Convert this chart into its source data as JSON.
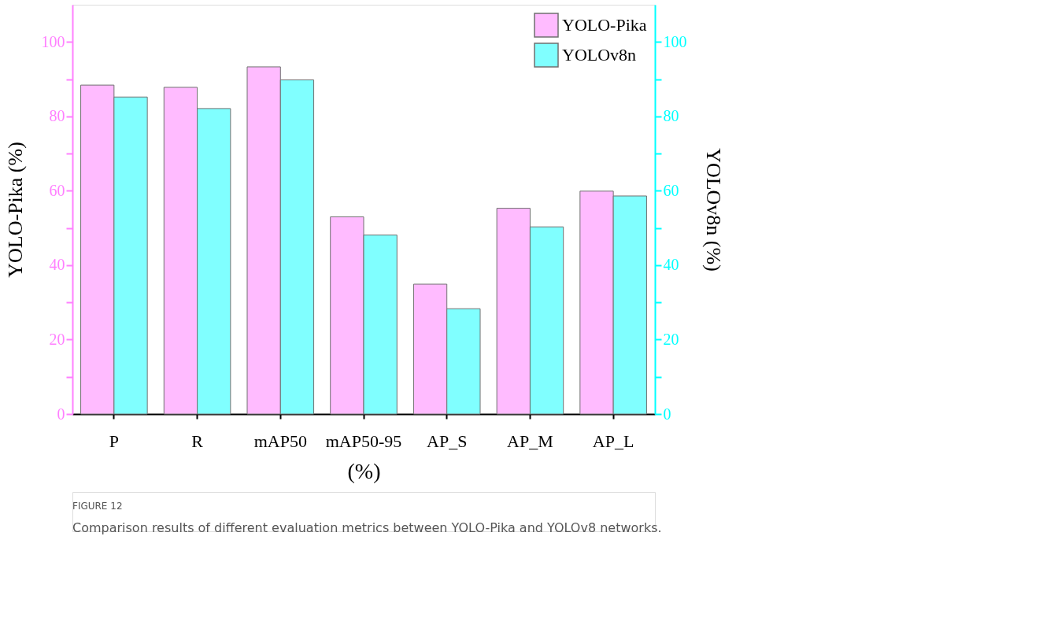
{
  "chart_data": {
    "type": "bar",
    "categories": [
      "P",
      "R",
      "mAP50",
      "mAP50-95",
      "AP_S",
      "AP_M",
      "AP_L"
    ],
    "xlabel": "(%)",
    "ylabel": "YOLO-Pika (%)",
    "y2label": "YOLOv8n (%)",
    "series": [
      {
        "name": "YOLO-Pika",
        "color": "#ffbbff",
        "values": [
          88.4,
          87.8,
          93.3,
          53.0,
          34.9,
          55.3,
          59.9
        ]
      },
      {
        "name": "YOLOv8n",
        "color": "#80ffff",
        "axis": "y2",
        "values": [
          85.2,
          82.1,
          89.8,
          48.1,
          28.3,
          50.3,
          58.6
        ]
      }
    ],
    "ylim": [
      0,
      110
    ],
    "yticks": [
      0,
      {
        "value": 10,
        "label": null
      },
      20,
      {
        "value": 30,
        "label": null
      },
      40,
      {
        "value": 50,
        "label": null
      },
      60,
      {
        "value": 70,
        "label": null
      },
      80,
      {
        "value": 90,
        "label": null
      },
      100
    ],
    "y2lim": [
      0,
      110
    ],
    "y2ticks": [
      0,
      {
        "value": 10,
        "label": null
      },
      20,
      {
        "value": 30,
        "label": null
      },
      40,
      {
        "value": 50,
        "label": null
      },
      60,
      {
        "value": 70,
        "label": null
      },
      80,
      {
        "value": 90,
        "label": null
      },
      100
    ],
    "legend": "top right",
    "grid": false,
    "annotations": [
      "FIGURE 12",
      "Comparison results of different evaluation metrics between YOLO-Pika and YOLOv8 networks."
    ]
  }
}
